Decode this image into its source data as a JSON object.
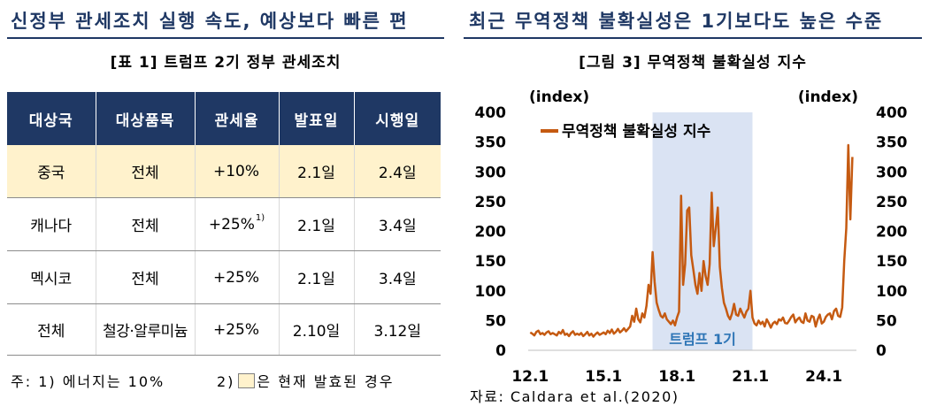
{
  "colors": {
    "heading": "#1f3864",
    "table_header_bg": "#1f3864",
    "table_header_text": "#ffffff",
    "highlight": "#fff2cc"
  },
  "left_panel": {
    "heading": "신정부 관세조치 실행 속도, 예상보다 빠른 편",
    "caption": "[표 1] 트럼프 2기 정부 관세조치",
    "table": {
      "headers": [
        "대상국",
        "대상품목",
        "관세율",
        "발표일",
        "시행일"
      ],
      "rows": [
        {
          "highlighted": true,
          "country": "중국",
          "item": "전체",
          "rate": "+10%",
          "announced": "2.1일",
          "effective": "2.4일"
        },
        {
          "highlighted": false,
          "country": "캐나다",
          "item": "전체",
          "rate": "+25%",
          "rate_note": "1)",
          "announced": "2.1일",
          "effective": "3.4일"
        },
        {
          "highlighted": false,
          "country": "멕시코",
          "item": "전체",
          "rate": "+25%",
          "announced": "2.1일",
          "effective": "3.4일"
        },
        {
          "highlighted": false,
          "country": "전체",
          "item": "철강·알루미늄",
          "rate": "+25%",
          "announced": "2.10일",
          "effective": "3.12일"
        }
      ]
    },
    "notes": {
      "note_1": "주: 1) 에너지는 10%",
      "note_2_prefix": "2)",
      "note_2_suffix": "은 현재 발효된 경우"
    }
  },
  "right_panel": {
    "heading": "최근 무역정책 불확실성은 1기보다도 높은 수준",
    "source": "자료: Caldara et al.(2020)"
  },
  "chart_data": {
    "type": "line",
    "title": "[그림 3] 무역정책 불확실성 지수",
    "y_unit_left": "(index)",
    "y_unit_right": "(index)",
    "ylim": [
      0,
      400
    ],
    "y_ticks": [
      0,
      50,
      100,
      150,
      200,
      250,
      300,
      350,
      400
    ],
    "xlim": [
      "2011-12",
      "2025-05"
    ],
    "x_ticks": [
      {
        "label": "12.1",
        "x": "2012-01"
      },
      {
        "label": "15.1",
        "x": "2015-01"
      },
      {
        "label": "18.1",
        "x": "2018-01"
      },
      {
        "label": "21.1",
        "x": "2021-01"
      },
      {
        "label": "24.1",
        "x": "2024-01"
      }
    ],
    "grid": false,
    "legend": {
      "position": "top-left"
    },
    "shaded_periods": [
      {
        "label": "트럼프 1기",
        "start": "2017-01",
        "end": "2021-01",
        "color": "#dae3f3",
        "label_color": "#2e75b6"
      }
    ],
    "series": [
      {
        "name": "무역정책 불확실성 지수",
        "color": "#c55a11",
        "x": [
          "2012-01",
          "2012-02",
          "2012-03",
          "2012-04",
          "2012-05",
          "2012-06",
          "2012-07",
          "2012-08",
          "2012-09",
          "2012-10",
          "2012-11",
          "2012-12",
          "2013-01",
          "2013-02",
          "2013-03",
          "2013-04",
          "2013-05",
          "2013-06",
          "2013-07",
          "2013-08",
          "2013-09",
          "2013-10",
          "2013-11",
          "2013-12",
          "2014-01",
          "2014-02",
          "2014-03",
          "2014-04",
          "2014-05",
          "2014-06",
          "2014-07",
          "2014-08",
          "2014-09",
          "2014-10",
          "2014-11",
          "2014-12",
          "2015-01",
          "2015-02",
          "2015-03",
          "2015-04",
          "2015-05",
          "2015-06",
          "2015-07",
          "2015-08",
          "2015-09",
          "2015-10",
          "2015-11",
          "2015-12",
          "2016-01",
          "2016-02",
          "2016-03",
          "2016-04",
          "2016-05",
          "2016-06",
          "2016-07",
          "2016-08",
          "2016-09",
          "2016-10",
          "2016-11",
          "2016-12",
          "2017-01",
          "2017-02",
          "2017-03",
          "2017-04",
          "2017-05",
          "2017-06",
          "2017-07",
          "2017-08",
          "2017-09",
          "2017-10",
          "2017-11",
          "2017-12",
          "2018-01",
          "2018-02",
          "2018-03",
          "2018-04",
          "2018-05",
          "2018-06",
          "2018-07",
          "2018-08",
          "2018-09",
          "2018-10",
          "2018-11",
          "2018-12",
          "2019-01",
          "2019-02",
          "2019-03",
          "2019-04",
          "2019-05",
          "2019-06",
          "2019-07",
          "2019-08",
          "2019-09",
          "2019-10",
          "2019-11",
          "2019-12",
          "2020-01",
          "2020-02",
          "2020-03",
          "2020-04",
          "2020-05",
          "2020-06",
          "2020-07",
          "2020-08",
          "2020-09",
          "2020-10",
          "2020-11",
          "2020-12",
          "2021-01",
          "2021-02",
          "2021-03",
          "2021-04",
          "2021-05",
          "2021-06",
          "2021-07",
          "2021-08",
          "2021-09",
          "2021-10",
          "2021-11",
          "2021-12",
          "2022-01",
          "2022-02",
          "2022-03",
          "2022-04",
          "2022-05",
          "2022-06",
          "2022-07",
          "2022-08",
          "2022-09",
          "2022-10",
          "2022-11",
          "2022-12",
          "2023-01",
          "2023-02",
          "2023-03",
          "2023-04",
          "2023-05",
          "2023-06",
          "2023-07",
          "2023-08",
          "2023-09",
          "2023-10",
          "2023-11",
          "2023-12",
          "2024-01",
          "2024-02",
          "2024-03",
          "2024-04",
          "2024-05",
          "2024-06",
          "2024-07",
          "2024-08",
          "2024-09",
          "2024-10",
          "2024-11",
          "2024-12",
          "2025-01",
          "2025-02",
          "2025-03"
        ],
        "values": [
          30,
          28,
          25,
          31,
          33,
          27,
          29,
          26,
          30,
          32,
          27,
          29,
          27,
          25,
          31,
          28,
          34,
          26,
          28,
          24,
          29,
          32,
          26,
          28,
          26,
          29,
          24,
          27,
          31,
          25,
          28,
          23,
          27,
          30,
          26,
          28,
          30,
          27,
          33,
          29,
          35,
          28,
          31,
          36,
          30,
          33,
          37,
          32,
          36,
          40,
          58,
          48,
          70,
          52,
          47,
          62,
          55,
          75,
          110,
          95,
          165,
          115,
          80,
          68,
          58,
          55,
          62,
          52,
          48,
          44,
          50,
          42,
          55,
          65,
          260,
          110,
          145,
          235,
          240,
          160,
          135,
          110,
          95,
          130,
          100,
          150,
          125,
          110,
          145,
          265,
          175,
          205,
          240,
          140,
          105,
          80,
          70,
          58,
          52,
          62,
          78,
          60,
          58,
          70,
          62,
          55,
          65,
          70,
          100,
          55,
          45,
          42,
          50,
          44,
          48,
          40,
          52,
          46,
          38,
          45,
          48,
          44,
          52,
          50,
          55,
          46,
          45,
          50,
          56,
          60,
          47,
          52,
          55,
          48,
          46,
          62,
          50,
          48,
          58,
          56,
          40,
          52,
          60,
          45,
          48,
          56,
          60,
          62,
          52,
          66,
          70,
          58,
          56,
          72,
          150,
          205,
          345,
          220,
          325
        ]
      }
    ]
  }
}
